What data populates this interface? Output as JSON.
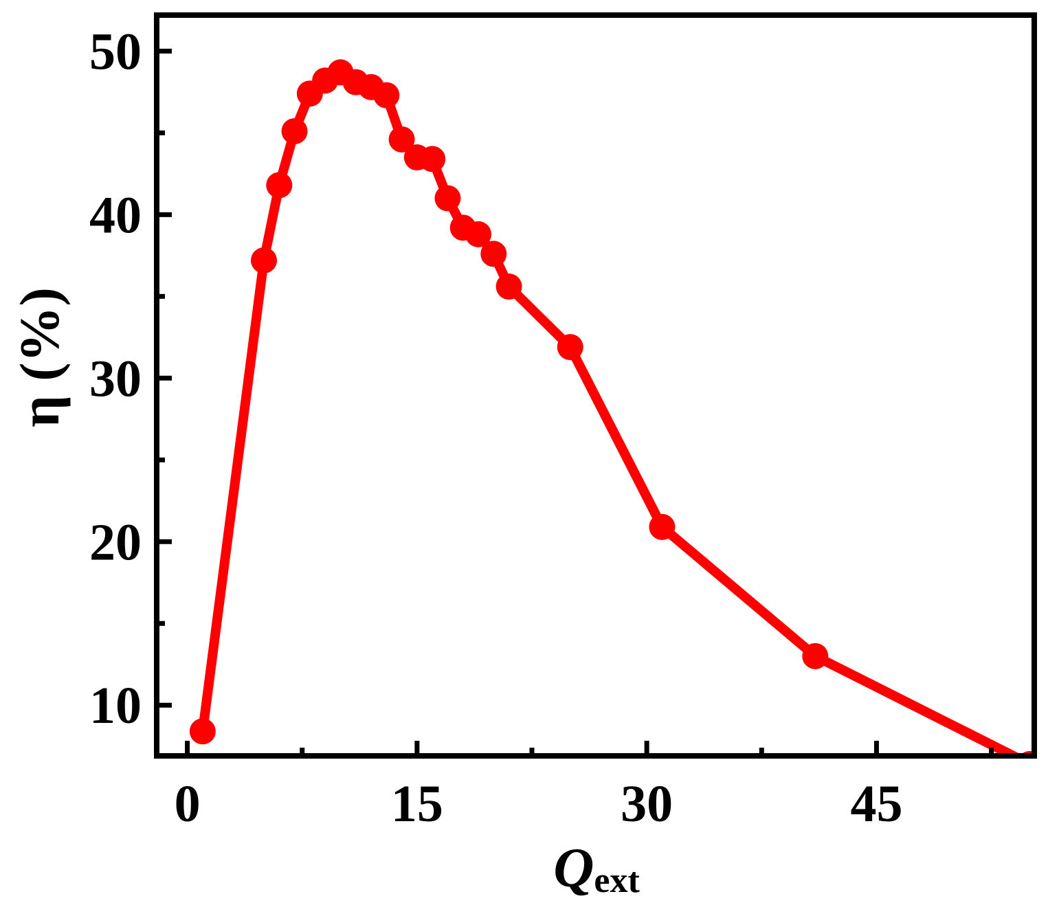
{
  "chart_data": {
    "type": "line",
    "x_label": "Q",
    "x_label_subscript": "ext",
    "y_label": "η (%)",
    "x": [
      1,
      5,
      6,
      7,
      8,
      9,
      10,
      11,
      12,
      13,
      14,
      15,
      16,
      17,
      18,
      19,
      20,
      21,
      25,
      31,
      41,
      55
    ],
    "series": [
      {
        "color": "#ff0000",
        "values": [
          8.4,
          37.2,
          41.8,
          45.1,
          47.4,
          48.2,
          48.7,
          48.1,
          47.8,
          47.3,
          44.6,
          43.5,
          43.4,
          41.0,
          39.2,
          38.8,
          37.6,
          35.6,
          31.9,
          20.9,
          13.0,
          6.4
        ]
      }
    ],
    "xlim": [
      -2,
      55.3
    ],
    "ylim": [
      6.9,
      52.2
    ],
    "xticks": [
      0,
      15,
      30,
      45
    ],
    "yticks": [
      10,
      20,
      30,
      40,
      50
    ],
    "xminorticks": [
      7.5,
      22.5,
      37.5,
      52.5
    ],
    "yminorticks": [
      15,
      25,
      35,
      45
    ]
  }
}
